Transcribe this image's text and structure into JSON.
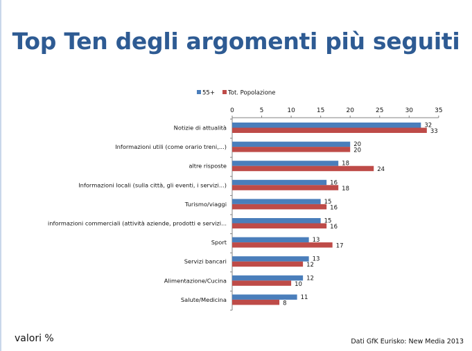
{
  "title": "Top Ten degli argomenti più seguiti",
  "note_left": "valori %",
  "source": "Dati GfK Eurisko: New Media 2013",
  "colors": {
    "series1": "#4a7ebb",
    "series2": "#be4b48",
    "title": "#2e5b93"
  },
  "chart_data": {
    "type": "bar",
    "orientation": "horizontal",
    "title": "",
    "xlabel": "",
    "ylabel": "",
    "xlim": [
      0,
      35
    ],
    "ticks": [
      0,
      5,
      10,
      15,
      20,
      25,
      30,
      35
    ],
    "legend_position": "top",
    "categories": [
      "Notizie di attualità",
      "Informazioni utili (come orario treni,...)",
      "altre risposte",
      "Informazioni locali (sulla città, gli eventi, i servizi...)",
      "Turismo/viaggi",
      "informazioni commerciali (attività aziende, prodotti e servizi...",
      "Sport",
      "Servizi bancari",
      "Alimentazione/Cucina",
      "Salute/Medicina"
    ],
    "series": [
      {
        "name": "55+",
        "values": [
          32,
          20,
          18,
          16,
          15,
          15,
          13,
          13,
          12,
          11
        ]
      },
      {
        "name": "Tot. Popolazione",
        "values": [
          33,
          20,
          24,
          18,
          16,
          16,
          17,
          12,
          10,
          8
        ]
      }
    ]
  }
}
